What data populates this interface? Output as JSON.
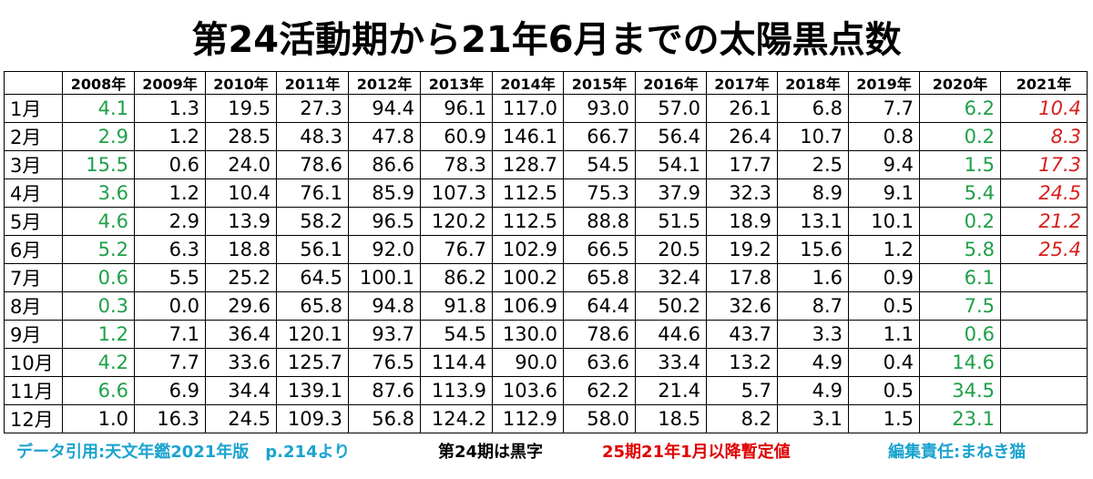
{
  "title": "第24活動期から21年6月までの太陽黒点数",
  "table": {
    "columns": [
      "2008年",
      "2009年",
      "2010年",
      "2011年",
      "2012年",
      "2013年",
      "2014年",
      "2015年",
      "2016年",
      "2017年",
      "2018年",
      "2019年",
      "2020年",
      "2021年"
    ],
    "rows": [
      {
        "label": "1月",
        "cells": [
          "4.1",
          "1.3",
          "19.5",
          "27.3",
          "94.4",
          "96.1",
          "117.0",
          "93.0",
          "57.0",
          "26.1",
          "6.8",
          "7.7",
          "6.2",
          "10.4"
        ]
      },
      {
        "label": "2月",
        "cells": [
          "2.9",
          "1.2",
          "28.5",
          "48.3",
          "47.8",
          "60.9",
          "146.1",
          "66.7",
          "56.4",
          "26.4",
          "10.7",
          "0.8",
          "0.2",
          "8.3"
        ]
      },
      {
        "label": "3月",
        "cells": [
          "15.5",
          "0.6",
          "24.0",
          "78.6",
          "86.6",
          "78.3",
          "128.7",
          "54.5",
          "54.1",
          "17.7",
          "2.5",
          "9.4",
          "1.5",
          "17.3"
        ]
      },
      {
        "label": "4月",
        "cells": [
          "3.6",
          "1.2",
          "10.4",
          "76.1",
          "85.9",
          "107.3",
          "112.5",
          "75.3",
          "37.9",
          "32.3",
          "8.9",
          "9.1",
          "5.4",
          "24.5"
        ]
      },
      {
        "label": "5月",
        "cells": [
          "4.6",
          "2.9",
          "13.9",
          "58.2",
          "96.5",
          "120.2",
          "112.5",
          "88.8",
          "51.5",
          "18.9",
          "13.1",
          "10.1",
          "0.2",
          "21.2"
        ]
      },
      {
        "label": "6月",
        "cells": [
          "5.2",
          "6.3",
          "18.8",
          "56.1",
          "92.0",
          "76.7",
          "102.9",
          "66.5",
          "20.5",
          "19.2",
          "15.6",
          "1.2",
          "5.8",
          "25.4"
        ]
      },
      {
        "label": "7月",
        "cells": [
          "0.6",
          "5.5",
          "25.2",
          "64.5",
          "100.1",
          "86.2",
          "100.2",
          "65.8",
          "32.4",
          "17.8",
          "1.6",
          "0.9",
          "6.1",
          null
        ]
      },
      {
        "label": "8月",
        "cells": [
          "0.3",
          "0.0",
          "29.6",
          "65.8",
          "94.8",
          "91.8",
          "106.9",
          "64.4",
          "50.2",
          "32.6",
          "8.7",
          "0.5",
          "7.5",
          null
        ]
      },
      {
        "label": "9月",
        "cells": [
          "1.2",
          "7.1",
          "36.4",
          "120.1",
          "93.7",
          "54.5",
          "130.0",
          "78.6",
          "44.6",
          "43.7",
          "3.3",
          "1.1",
          "0.6",
          null
        ]
      },
      {
        "label": "10月",
        "cells": [
          "4.2",
          "7.7",
          "33.6",
          "125.7",
          "76.5",
          "114.4",
          "90.0",
          "63.6",
          "33.4",
          "13.2",
          "4.9",
          "0.4",
          "14.6",
          null
        ]
      },
      {
        "label": "11月",
        "cells": [
          "6.6",
          "6.9",
          "34.4",
          "139.1",
          "87.6",
          "113.9",
          "103.6",
          "62.2",
          "21.4",
          "5.7",
          "4.9",
          "0.5",
          "34.5",
          null
        ]
      },
      {
        "label": "12月",
        "cells": [
          "1.0",
          "16.3",
          "24.5",
          "109.3",
          "56.8",
          "124.2",
          "112.9",
          "58.0",
          "18.5",
          "8.2",
          "3.1",
          "1.5",
          "23.1",
          null
        ]
      }
    ]
  },
  "footer": {
    "source": "データ引用:天文年鑑2021年版　p.214より",
    "note_black": "第24期は黒字",
    "note_red": "25期21年1月以降暫定値",
    "editor": "編集責任:まねき猫"
  }
}
